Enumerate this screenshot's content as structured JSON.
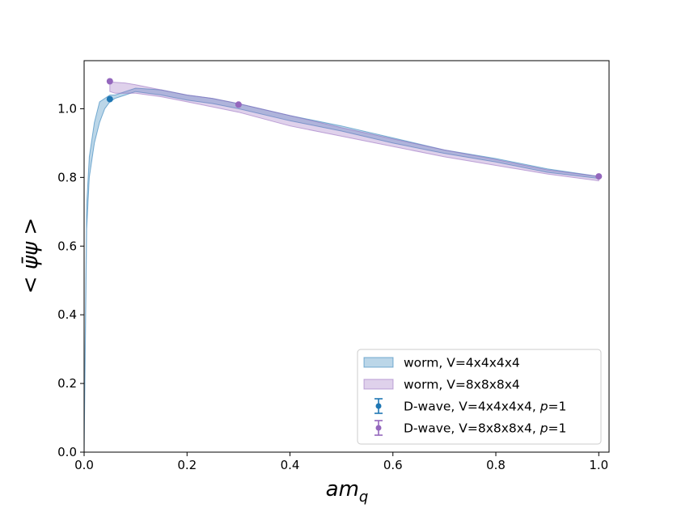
{
  "chart_data": {
    "type": "area",
    "xlabel": "am",
    "xlabel_sub": "q",
    "ylabel": "< ψ̄ψ >",
    "xlim": [
      0.0,
      1.02
    ],
    "ylim": [
      0.0,
      1.14
    ],
    "xticks": [
      "0.0",
      "0.2",
      "0.4",
      "0.6",
      "0.8",
      "1.0"
    ],
    "yticks": [
      "0.0",
      "0.2",
      "0.4",
      "0.6",
      "0.8",
      "1.0"
    ],
    "grid": false,
    "legend_position": "lower-right",
    "series": [
      {
        "name": "worm, V=4x4x4x4",
        "kind": "band",
        "color": "#1f77b4",
        "x": [
          0.0,
          0.005,
          0.01,
          0.02,
          0.03,
          0.04,
          0.05,
          0.06,
          0.08,
          0.1,
          0.15,
          0.2,
          0.25,
          0.3,
          0.4,
          0.5,
          0.6,
          0.7,
          0.8,
          0.9,
          1.0
        ],
        "lower": [
          0.0,
          0.65,
          0.8,
          0.9,
          0.96,
          1.0,
          1.02,
          1.03,
          1.04,
          1.05,
          1.04,
          1.025,
          1.015,
          1.0,
          0.965,
          0.935,
          0.9,
          0.87,
          0.845,
          0.815,
          0.797
        ],
        "upper": [
          0.05,
          0.72,
          0.86,
          0.96,
          1.02,
          1.03,
          1.04,
          1.04,
          1.05,
          1.06,
          1.055,
          1.04,
          1.03,
          1.015,
          0.98,
          0.95,
          0.915,
          0.88,
          0.855,
          0.825,
          0.803
        ]
      },
      {
        "name": "worm, V=8x8x8x4",
        "kind": "band",
        "color": "#9467bd",
        "x": [
          0.05,
          0.06,
          0.08,
          0.1,
          0.15,
          0.2,
          0.25,
          0.3,
          0.4,
          0.5,
          0.6,
          0.7,
          0.8,
          0.9,
          1.0
        ],
        "lower": [
          1.05,
          1.045,
          1.045,
          1.045,
          1.035,
          1.02,
          1.005,
          0.99,
          0.95,
          0.92,
          0.89,
          0.86,
          0.835,
          0.81,
          0.79
        ],
        "upper": [
          1.078,
          1.077,
          1.075,
          1.07,
          1.055,
          1.04,
          1.03,
          1.015,
          0.98,
          0.945,
          0.912,
          0.88,
          0.852,
          0.822,
          0.803
        ]
      },
      {
        "name": "D-wave, V=4x4x4x4, p=1",
        "kind": "errorbar",
        "color": "#1f77b4",
        "points": [
          {
            "x": 0.05,
            "y": 1.028
          }
        ]
      },
      {
        "name": "D-wave, V=8x8x8x4, p=1",
        "kind": "errorbar",
        "color": "#9467bd",
        "points": [
          {
            "x": 0.05,
            "y": 1.08
          },
          {
            "x": 0.3,
            "y": 1.012
          },
          {
            "x": 1.0,
            "y": 0.803
          }
        ]
      }
    ]
  }
}
